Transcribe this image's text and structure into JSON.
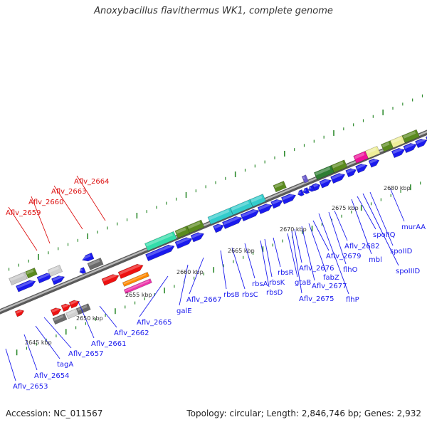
{
  "title": "Anoxybacillus flavithermus WK1, complete genome",
  "footer": {
    "accession": "Accession: NC_011567",
    "info": "Topology: circular; Length: 2,846,746 bp; Genes: 2,932"
  },
  "colors": {
    "cds": "#1a1aee",
    "rna": "#ee1111",
    "backbone": "#8a8a8a",
    "tick": "#2e8b2e",
    "cds_label": "#1a1aee",
    "rna_label": "#dd1111"
  },
  "kbp_markers": [
    "2645 kbp",
    "2650 kbp",
    "2655 kbp",
    "2660 kbp",
    "2665 kbp",
    "2670 kbp",
    "2675 kbp",
    "2680 kbp"
  ],
  "gene_labels": [
    {
      "text": "Aflv_2664",
      "kind": "rna"
    },
    {
      "text": "Aflv_2663",
      "kind": "rna"
    },
    {
      "text": "Aflv_2660",
      "kind": "rna"
    },
    {
      "text": "Aflv_2659",
      "kind": "rna"
    },
    {
      "text": "Aflv_2653",
      "kind": "cds"
    },
    {
      "text": "Aflv_2654",
      "kind": "cds"
    },
    {
      "text": "tagA",
      "kind": "cds"
    },
    {
      "text": "Aflv_2657",
      "kind": "cds"
    },
    {
      "text": "Aflv_2661",
      "kind": "cds"
    },
    {
      "text": "Aflv_2662",
      "kind": "cds"
    },
    {
      "text": "Aflv_2665",
      "kind": "cds"
    },
    {
      "text": "galE",
      "kind": "cds"
    },
    {
      "text": "Aflv_2667",
      "kind": "cds"
    },
    {
      "text": "rbsB",
      "kind": "cds"
    },
    {
      "text": "rbsC",
      "kind": "cds"
    },
    {
      "text": "rbsA",
      "kind": "cds"
    },
    {
      "text": "rbsD",
      "kind": "cds"
    },
    {
      "text": "rbsK",
      "kind": "cds"
    },
    {
      "text": "rbsR",
      "kind": "cds"
    },
    {
      "text": "gtaB",
      "kind": "cds"
    },
    {
      "text": "Aflv_2676",
      "kind": "cds"
    },
    {
      "text": "Aflv_2675",
      "kind": "cds"
    },
    {
      "text": "Aflv_2677",
      "kind": "cds"
    },
    {
      "text": "fabZ",
      "kind": "cds"
    },
    {
      "text": "Aflv_2679",
      "kind": "cds"
    },
    {
      "text": "flhP",
      "kind": "cds"
    },
    {
      "text": "flhO",
      "kind": "cds"
    },
    {
      "text": "Aflv_2682",
      "kind": "cds"
    },
    {
      "text": "mbl",
      "kind": "cds"
    },
    {
      "text": "spoIIQ",
      "kind": "cds"
    },
    {
      "text": "spoIID",
      "kind": "cds"
    },
    {
      "text": "spoIIID",
      "kind": "cds"
    },
    {
      "text": "murAA",
      "kind": "cds"
    }
  ]
}
